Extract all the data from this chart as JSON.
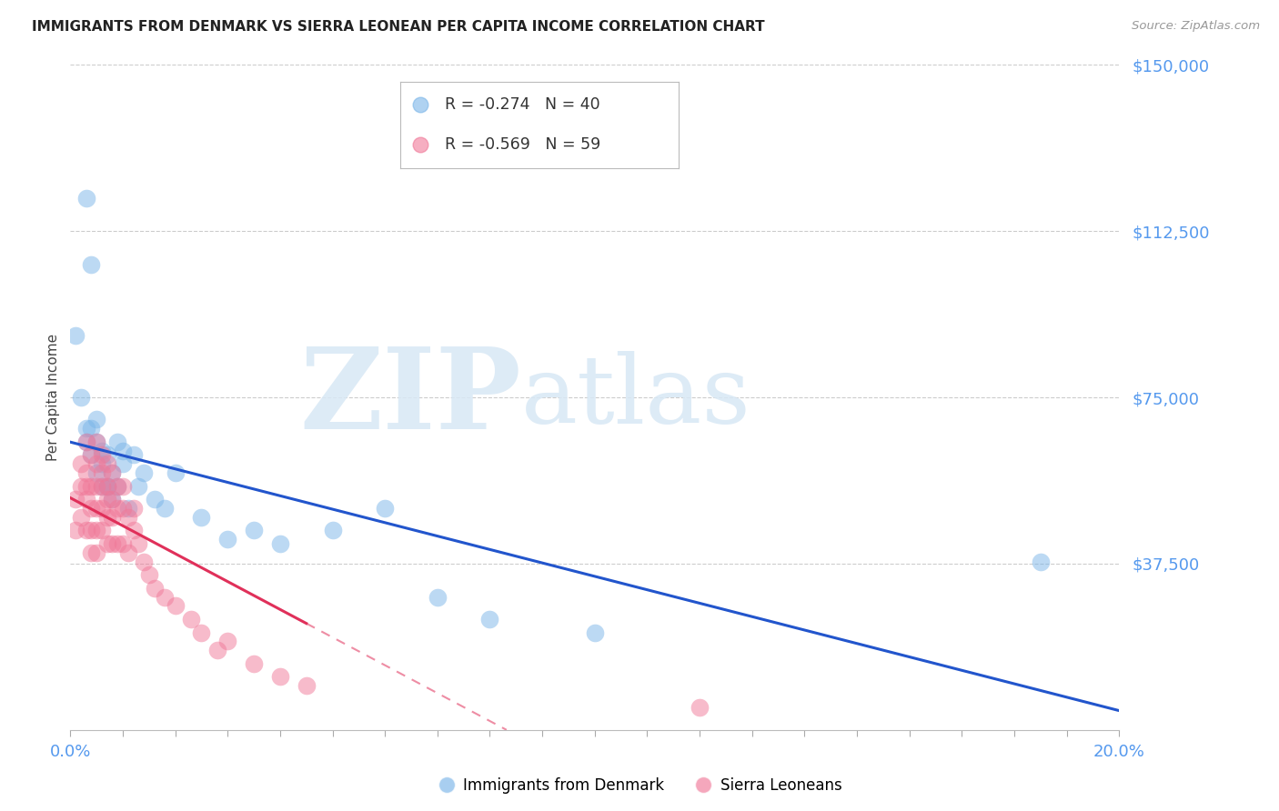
{
  "title": "IMMIGRANTS FROM DENMARK VS SIERRA LEONEAN PER CAPITA INCOME CORRELATION CHART",
  "source": "Source: ZipAtlas.com",
  "ylabel": "Per Capita Income",
  "y_ticks": [
    0,
    37500,
    75000,
    112500,
    150000
  ],
  "y_tick_labels": [
    "",
    "$37,500",
    "$75,000",
    "$112,500",
    "$150,000"
  ],
  "x_min": 0.0,
  "x_max": 0.2,
  "y_min": 0,
  "y_max": 150000,
  "denmark_R": -0.274,
  "denmark_N": 40,
  "sierraleone_R": -0.569,
  "sierraleone_N": 59,
  "blue_color": "#7ab5e8",
  "pink_color": "#f07898",
  "blue_line_color": "#2255cc",
  "pink_line_color": "#e0305a",
  "axis_color": "#5599ee",
  "background_color": "#ffffff",
  "grid_color": "#cccccc",
  "denmark_x": [
    0.001,
    0.002,
    0.003,
    0.003,
    0.003,
    0.004,
    0.004,
    0.004,
    0.005,
    0.005,
    0.005,
    0.006,
    0.006,
    0.006,
    0.007,
    0.007,
    0.007,
    0.008,
    0.008,
    0.009,
    0.009,
    0.01,
    0.01,
    0.011,
    0.012,
    0.013,
    0.014,
    0.016,
    0.018,
    0.02,
    0.025,
    0.03,
    0.035,
    0.04,
    0.05,
    0.06,
    0.07,
    0.08,
    0.1,
    0.185
  ],
  "denmark_y": [
    89000,
    75000,
    68000,
    65000,
    120000,
    105000,
    68000,
    62000,
    70000,
    58000,
    65000,
    55000,
    60000,
    63000,
    55000,
    62000,
    55000,
    58000,
    52000,
    65000,
    55000,
    60000,
    63000,
    50000,
    62000,
    55000,
    58000,
    52000,
    50000,
    58000,
    48000,
    43000,
    45000,
    42000,
    45000,
    50000,
    30000,
    25000,
    22000,
    38000
  ],
  "sierraleone_x": [
    0.001,
    0.001,
    0.002,
    0.002,
    0.002,
    0.003,
    0.003,
    0.003,
    0.003,
    0.003,
    0.004,
    0.004,
    0.004,
    0.004,
    0.004,
    0.005,
    0.005,
    0.005,
    0.005,
    0.005,
    0.005,
    0.006,
    0.006,
    0.006,
    0.006,
    0.006,
    0.007,
    0.007,
    0.007,
    0.007,
    0.007,
    0.008,
    0.008,
    0.008,
    0.008,
    0.009,
    0.009,
    0.009,
    0.01,
    0.01,
    0.01,
    0.011,
    0.011,
    0.012,
    0.012,
    0.013,
    0.014,
    0.015,
    0.016,
    0.018,
    0.02,
    0.023,
    0.025,
    0.028,
    0.03,
    0.035,
    0.04,
    0.045,
    0.12
  ],
  "sierraleone_y": [
    52000,
    45000,
    60000,
    55000,
    48000,
    65000,
    58000,
    55000,
    52000,
    45000,
    62000,
    55000,
    50000,
    45000,
    40000,
    65000,
    60000,
    55000,
    50000,
    45000,
    40000,
    62000,
    58000,
    55000,
    50000,
    45000,
    60000,
    55000,
    52000,
    48000,
    42000,
    58000,
    52000,
    48000,
    42000,
    55000,
    50000,
    42000,
    55000,
    50000,
    42000,
    48000,
    40000,
    50000,
    45000,
    42000,
    38000,
    35000,
    32000,
    30000,
    28000,
    25000,
    22000,
    18000,
    20000,
    15000,
    12000,
    10000,
    5000
  ]
}
